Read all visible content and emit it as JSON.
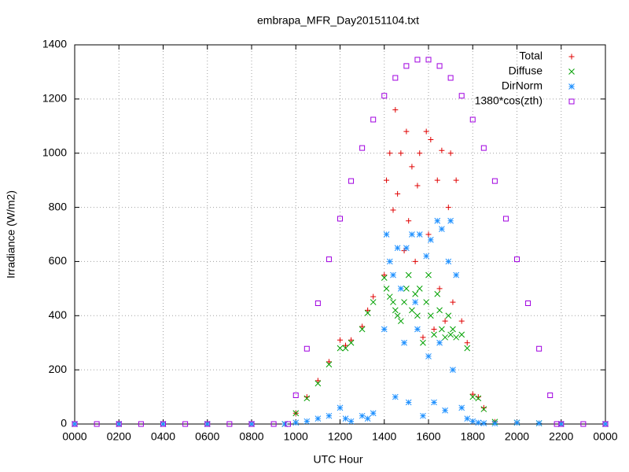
{
  "chart_data": {
    "type": "scatter",
    "title": "embrapa_MFR_Day20151104.txt",
    "xlabel": "UTC Hour",
    "ylabel": "Irradiance (W/m2)",
    "xlim": [
      0,
      24
    ],
    "ylim": [
      0,
      1400
    ],
    "xticks": [
      {
        "value": 0,
        "label": "0000"
      },
      {
        "value": 2,
        "label": "0200"
      },
      {
        "value": 4,
        "label": "0400"
      },
      {
        "value": 6,
        "label": "0600"
      },
      {
        "value": 8,
        "label": "0800"
      },
      {
        "value": 10,
        "label": "1000"
      },
      {
        "value": 12,
        "label": "1200"
      },
      {
        "value": 14,
        "label": "1400"
      },
      {
        "value": 16,
        "label": "1600"
      },
      {
        "value": 18,
        "label": "1800"
      },
      {
        "value": 20,
        "label": "2000"
      },
      {
        "value": 22,
        "label": "2200"
      },
      {
        "value": 24,
        "label": "0000"
      }
    ],
    "yticks": [
      0,
      200,
      400,
      600,
      800,
      1000,
      1200,
      1400
    ],
    "grid": true,
    "legend": "top-right",
    "series": [
      {
        "name": "Total",
        "color": "#e00000",
        "marker": "plus",
        "x": [
          0,
          2,
          4,
          6,
          8,
          9.5,
          10,
          10.5,
          11,
          11.5,
          12,
          12.25,
          12.5,
          13,
          13.25,
          13.5,
          14,
          14.1,
          14.25,
          14.4,
          14.5,
          14.6,
          14.75,
          14.9,
          15,
          15.1,
          15.25,
          15.4,
          15.5,
          15.6,
          15.75,
          15.9,
          16,
          16.1,
          16.25,
          16.4,
          16.5,
          16.6,
          16.75,
          16.9,
          17,
          17.1,
          17.25,
          17.5,
          17.75,
          18,
          18.25,
          18.5,
          19,
          20,
          21,
          22,
          24
        ],
        "values": [
          0,
          0,
          0,
          0,
          0,
          0,
          40,
          100,
          160,
          230,
          310,
          290,
          310,
          360,
          420,
          470,
          550,
          900,
          1000,
          790,
          1160,
          850,
          1000,
          640,
          1080,
          750,
          950,
          600,
          880,
          1000,
          320,
          1080,
          700,
          1050,
          350,
          900,
          500,
          1010,
          380,
          800,
          1000,
          450,
          900,
          380,
          300,
          110,
          100,
          60,
          8,
          5,
          3,
          0,
          0
        ]
      },
      {
        "name": "Diffuse",
        "color": "#00a000",
        "marker": "cross",
        "x": [
          0,
          2,
          4,
          6,
          8,
          9.5,
          10,
          10.5,
          11,
          11.5,
          12,
          12.25,
          12.5,
          13,
          13.25,
          13.5,
          14,
          14.1,
          14.25,
          14.4,
          14.5,
          14.6,
          14.75,
          14.9,
          15,
          15.1,
          15.25,
          15.4,
          15.5,
          15.6,
          15.75,
          15.9,
          16,
          16.1,
          16.25,
          16.4,
          16.5,
          16.6,
          16.75,
          16.9,
          17,
          17.1,
          17.25,
          17.5,
          17.75,
          18,
          18.25,
          18.5,
          19,
          20,
          21,
          22,
          24
        ],
        "values": [
          0,
          0,
          0,
          0,
          0,
          0,
          40,
          95,
          150,
          220,
          280,
          280,
          300,
          350,
          410,
          450,
          540,
          500,
          470,
          450,
          420,
          400,
          380,
          450,
          500,
          550,
          420,
          480,
          400,
          500,
          300,
          450,
          550,
          400,
          330,
          480,
          420,
          350,
          320,
          400,
          330,
          350,
          320,
          330,
          280,
          100,
          95,
          55,
          8,
          5,
          3,
          0,
          0
        ]
      },
      {
        "name": "DirNorm",
        "color": "#1e90ff",
        "marker": "star",
        "x": [
          0,
          2,
          4,
          6,
          8,
          9.5,
          10,
          10.5,
          11,
          11.5,
          12,
          12.25,
          12.5,
          13,
          13.25,
          13.5,
          14,
          14.1,
          14.25,
          14.4,
          14.5,
          14.6,
          14.75,
          14.9,
          15,
          15.1,
          15.25,
          15.4,
          15.5,
          15.6,
          15.75,
          15.9,
          16,
          16.1,
          16.25,
          16.4,
          16.5,
          16.6,
          16.75,
          16.9,
          17,
          17.1,
          17.25,
          17.5,
          17.75,
          18,
          18.25,
          18.5,
          19,
          20,
          21,
          22,
          24
        ],
        "values": [
          0,
          0,
          0,
          0,
          0,
          0,
          5,
          10,
          20,
          30,
          60,
          20,
          10,
          30,
          20,
          40,
          350,
          700,
          600,
          550,
          100,
          650,
          500,
          300,
          650,
          80,
          700,
          450,
          350,
          700,
          30,
          620,
          250,
          680,
          80,
          750,
          300,
          720,
          50,
          600,
          750,
          200,
          550,
          60,
          20,
          10,
          5,
          3,
          2,
          5,
          3,
          0,
          0
        ]
      },
      {
        "name": "1380*cos(zth)",
        "color": "#a000e0",
        "marker": "square",
        "x": [
          0,
          1,
          2,
          3,
          4,
          5,
          6,
          7,
          8,
          9,
          9.65,
          10,
          10.5,
          11,
          11.5,
          12,
          12.5,
          13,
          13.5,
          14,
          14.5,
          15,
          15.5,
          16,
          16.5,
          17,
          17.5,
          18,
          18.5,
          19,
          19.5,
          20,
          20.5,
          21,
          21.5,
          21.8,
          22,
          23,
          24
        ],
        "values": [
          0,
          0,
          0,
          0,
          0,
          0,
          0,
          0,
          0,
          0,
          0,
          106,
          278,
          446,
          608,
          758,
          897,
          1019,
          1124,
          1212,
          1278,
          1322,
          1345,
          1345,
          1322,
          1278,
          1212,
          1124,
          1019,
          897,
          758,
          608,
          446,
          278,
          106,
          0,
          0,
          0,
          0
        ]
      }
    ]
  }
}
